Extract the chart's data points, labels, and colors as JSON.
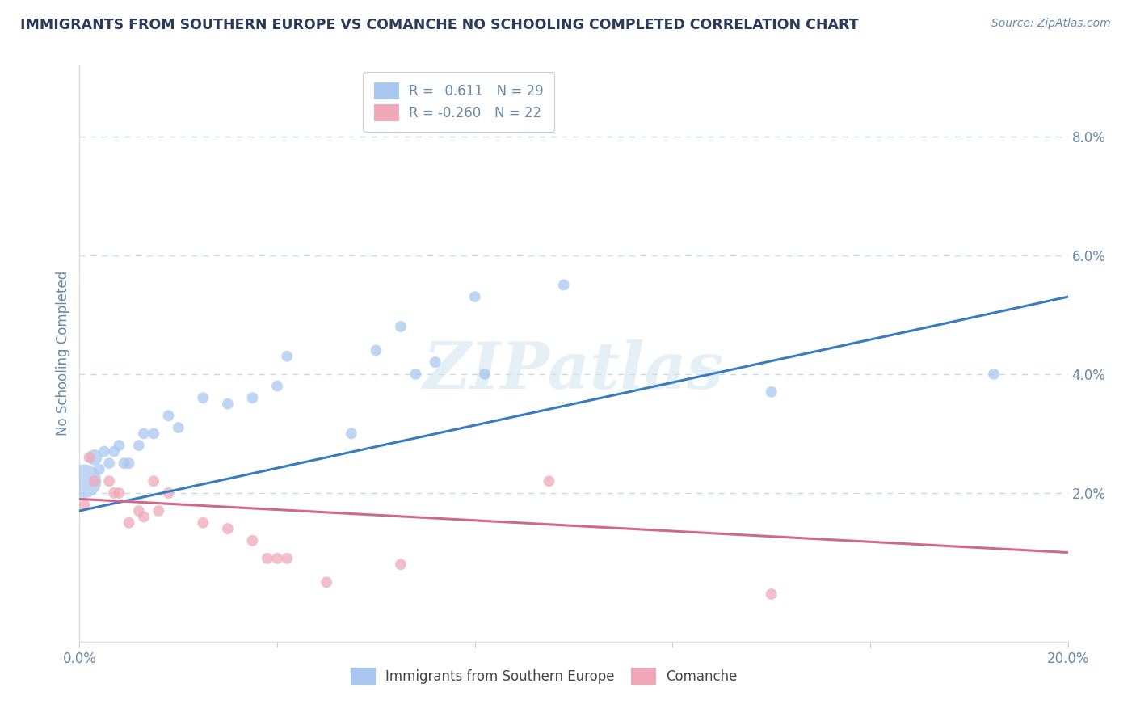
{
  "title": "IMMIGRANTS FROM SOUTHERN EUROPE VS COMANCHE NO SCHOOLING COMPLETED CORRELATION CHART",
  "source": "Source: ZipAtlas.com",
  "ylabel": "No Schooling Completed",
  "xlim": [
    0.0,
    0.2
  ],
  "ylim": [
    -0.005,
    0.092
  ],
  "xticks": [
    0.0,
    0.04,
    0.08,
    0.12,
    0.16,
    0.2
  ],
  "xticklabels": [
    "0.0%",
    "",
    "",
    "",
    "",
    "20.0%"
  ],
  "yticks": [
    0.0,
    0.02,
    0.04,
    0.06,
    0.08
  ],
  "yticklabels": [
    "",
    "2.0%",
    "4.0%",
    "6.0%",
    "8.0%"
  ],
  "legend_r_items": [
    {
      "label": "R =  0.611  N = 29",
      "color": "#a8c8f0"
    },
    {
      "label": "R = -0.260  N = 22",
      "color": "#f0a8b8"
    }
  ],
  "blue_scatter": [
    [
      0.001,
      0.022
    ],
    [
      0.003,
      0.026
    ],
    [
      0.004,
      0.024
    ],
    [
      0.005,
      0.027
    ],
    [
      0.006,
      0.025
    ],
    [
      0.007,
      0.027
    ],
    [
      0.008,
      0.028
    ],
    [
      0.009,
      0.025
    ],
    [
      0.01,
      0.025
    ],
    [
      0.012,
      0.028
    ],
    [
      0.013,
      0.03
    ],
    [
      0.015,
      0.03
    ],
    [
      0.018,
      0.033
    ],
    [
      0.02,
      0.031
    ],
    [
      0.025,
      0.036
    ],
    [
      0.03,
      0.035
    ],
    [
      0.035,
      0.036
    ],
    [
      0.04,
      0.038
    ],
    [
      0.042,
      0.043
    ],
    [
      0.055,
      0.03
    ],
    [
      0.06,
      0.044
    ],
    [
      0.065,
      0.048
    ],
    [
      0.068,
      0.04
    ],
    [
      0.072,
      0.042
    ],
    [
      0.08,
      0.053
    ],
    [
      0.082,
      0.04
    ],
    [
      0.098,
      0.055
    ],
    [
      0.14,
      0.037
    ],
    [
      0.185,
      0.04
    ]
  ],
  "blue_sizes": [
    900,
    200,
    100,
    100,
    100,
    100,
    100,
    100,
    100,
    100,
    100,
    100,
    100,
    100,
    100,
    100,
    100,
    100,
    100,
    100,
    100,
    100,
    100,
    100,
    100,
    100,
    100,
    100,
    100
  ],
  "pink_scatter": [
    [
      0.001,
      0.018
    ],
    [
      0.002,
      0.026
    ],
    [
      0.003,
      0.022
    ],
    [
      0.006,
      0.022
    ],
    [
      0.007,
      0.02
    ],
    [
      0.008,
      0.02
    ],
    [
      0.01,
      0.015
    ],
    [
      0.012,
      0.017
    ],
    [
      0.013,
      0.016
    ],
    [
      0.015,
      0.022
    ],
    [
      0.016,
      0.017
    ],
    [
      0.018,
      0.02
    ],
    [
      0.025,
      0.015
    ],
    [
      0.03,
      0.014
    ],
    [
      0.035,
      0.012
    ],
    [
      0.038,
      0.009
    ],
    [
      0.04,
      0.009
    ],
    [
      0.042,
      0.009
    ],
    [
      0.05,
      0.005
    ],
    [
      0.065,
      0.008
    ],
    [
      0.095,
      0.022
    ],
    [
      0.14,
      0.003
    ]
  ],
  "pink_sizes": [
    100,
    100,
    100,
    100,
    100,
    100,
    100,
    100,
    100,
    100,
    100,
    100,
    100,
    100,
    100,
    100,
    100,
    100,
    100,
    100,
    100,
    100
  ],
  "blue_line_x": [
    0.0,
    0.2
  ],
  "blue_line_y": [
    0.017,
    0.053
  ],
  "pink_line_x": [
    0.0,
    0.2
  ],
  "pink_line_y": [
    0.019,
    0.01
  ],
  "blue_color": "#a8c8f0",
  "pink_color": "#f0a8b8",
  "blue_line_color": "#3a7abf",
  "pink_line_color": "#d06888",
  "title_color": "#2a3a5a",
  "axis_color": "#6688aa",
  "tick_color": "#6688aa",
  "watermark": "ZIPatlas",
  "background_color": "#ffffff",
  "grid_color": "#c8d8e8",
  "dashed_line_y1": 0.08,
  "dashed_line_y2": 0.06,
  "dashed_line_y3": 0.04,
  "dashed_line_y4": 0.02
}
